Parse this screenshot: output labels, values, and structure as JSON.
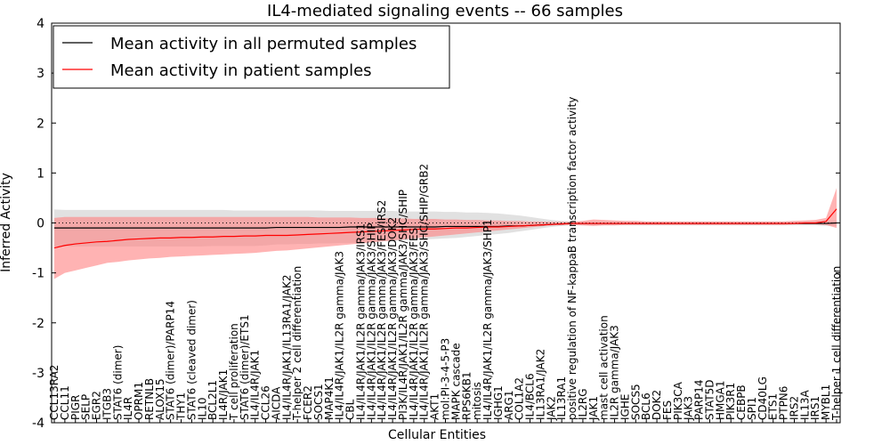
{
  "chart_data": {
    "type": "line",
    "title": "IL4-mediated signaling events -- 66 samples",
    "xlabel": "Cellular Entities",
    "ylabel": "Inferred Activity",
    "ylim": [
      -4,
      4
    ],
    "yticks": [
      -4,
      -3,
      -2,
      -1,
      0,
      1,
      2,
      3,
      4
    ],
    "legend": {
      "position": "top-left",
      "entries": [
        "Mean activity in all permuted samples",
        "Mean activity in patient samples"
      ]
    },
    "colors": {
      "permuted_line": "#000000",
      "patient_line": "#ff0000",
      "permuted_band": "#c8c8c8",
      "patient_band": "#ff8080",
      "zero_line": "#000000"
    },
    "categories": [
      "CCL13RA2",
      "CCL11",
      "PIGR",
      "SELP",
      "EGR2",
      "ITGB3",
      "STAT6 (dimer)",
      "IL4R",
      "OPRM1",
      "RETNLB",
      "ALOX15",
      "STAT6 (dimer)/PARP14",
      "THY1",
      "STAT6 (cleaved dimer)",
      "IL10",
      "BCL2L1",
      "IL4R/JAK1",
      "T cell proliferation",
      "STAT6 (dimer)/ETS1",
      "IL4/IL4R/JAK1",
      "CCL26",
      "AICDA",
      "IL4/IL4R/JAK1/IL13RA1/JAK2",
      "T-helper 2 cell differentiation",
      "FCER2",
      "SOCS1",
      "MAP4K1",
      "IL4/IL4R/JAK1/IL2R gamma/JAK3",
      "CBL",
      "IL4/IL4R/JAK1/IL2R gamma/JAK3/IRS1",
      "IL4/IL4R/JAK1/IL2R gamma/JAK3/SHIP",
      "IL4/IL4R/JAK1/IL2R gamma/JAK3/FES/IRS2",
      "IL4/IL4R/JAK1/IL2R gamma/JAK3/DOK2",
      "PI3K/IL4R/JAK1/IL2R gamma/JAK3/SHC/SHIP",
      "IL4/IL4R/JAK1/IL2R gamma/JAK3/FES",
      "IL4/IL4R/JAK1/IL2R gamma/JAK3/SHC/SHIP/GRB2",
      "AKT1",
      "mol:PI-3-4-5-P3",
      "MAPK cascade",
      "RPS6KB1",
      "mitosis",
      "IL4/IL4R/JAK1/IL2R gamma/JAK3/SHP1",
      "IGHG1",
      "ARG1",
      "COL1A2",
      "IL4/BCL6",
      "IL13RA1/JAK2",
      "JAK2",
      "IL13RA1",
      "positive regulation of NF-kappaB transcription factor activity",
      "IL2RG",
      "JAK1",
      "mast cell activation",
      "IL2R gamma/JAK3",
      "IGHE",
      "SOCS5",
      "BCL6",
      "DOK2",
      "FES",
      "PIK3CA",
      "JAK3",
      "PARP14",
      "STAT5D",
      "HMGA1",
      "PIK3R1",
      "CEBPB",
      "SPI1",
      "CD40LG",
      "ETS1",
      "PTPN6",
      "IRS2",
      "IL13A",
      "IRS1",
      "MYBL1",
      "T-helper 1 cell differentiation"
    ],
    "series": [
      {
        "name": "Mean activity in all permuted samples",
        "values": [
          -0.1,
          -0.1,
          -0.1,
          -0.1,
          -0.1,
          -0.1,
          -0.1,
          -0.1,
          -0.1,
          -0.1,
          -0.1,
          -0.1,
          -0.1,
          -0.1,
          -0.1,
          -0.1,
          -0.1,
          -0.1,
          -0.1,
          -0.1,
          -0.1,
          -0.09,
          -0.09,
          -0.09,
          -0.09,
          -0.09,
          -0.09,
          -0.09,
          -0.08,
          -0.08,
          -0.08,
          -0.08,
          -0.08,
          -0.08,
          -0.08,
          -0.08,
          -0.08,
          -0.07,
          -0.07,
          -0.07,
          -0.07,
          -0.07,
          -0.07,
          -0.06,
          -0.06,
          -0.05,
          -0.04,
          -0.03,
          -0.02,
          -0.01,
          -0.01,
          -0.01,
          -0.01,
          -0.01,
          -0.01,
          -0.01,
          -0.01,
          -0.01,
          -0.01,
          -0.01,
          -0.01,
          -0.01,
          -0.01,
          -0.01,
          -0.01,
          -0.01,
          -0.01,
          -0.01,
          -0.01,
          -0.01,
          -0.01,
          -0.01,
          -0.01,
          -0.01,
          0.0
        ],
        "upper": [
          0.27,
          0.26,
          0.26,
          0.26,
          0.26,
          0.26,
          0.26,
          0.26,
          0.26,
          0.26,
          0.26,
          0.26,
          0.26,
          0.26,
          0.26,
          0.26,
          0.26,
          0.25,
          0.25,
          0.25,
          0.25,
          0.25,
          0.25,
          0.25,
          0.25,
          0.25,
          0.24,
          0.24,
          0.24,
          0.24,
          0.24,
          0.24,
          0.24,
          0.23,
          0.23,
          0.23,
          0.23,
          0.22,
          0.22,
          0.21,
          0.21,
          0.2,
          0.19,
          0.17,
          0.15,
          0.12,
          0.09,
          0.06,
          0.04,
          0.03,
          0.03,
          0.03,
          0.03,
          0.03,
          0.03,
          0.03,
          0.03,
          0.03,
          0.03,
          0.03,
          0.03,
          0.03,
          0.03,
          0.03,
          0.03,
          0.03,
          0.03,
          0.03,
          0.03,
          0.03,
          0.03,
          0.03,
          0.03,
          0.04,
          0.05
        ],
        "lower": [
          -0.47,
          -0.47,
          -0.47,
          -0.47,
          -0.47,
          -0.47,
          -0.47,
          -0.47,
          -0.47,
          -0.47,
          -0.47,
          -0.47,
          -0.47,
          -0.47,
          -0.47,
          -0.46,
          -0.46,
          -0.46,
          -0.46,
          -0.46,
          -0.45,
          -0.43,
          -0.43,
          -0.42,
          -0.42,
          -0.41,
          -0.41,
          -0.4,
          -0.4,
          -0.39,
          -0.38,
          -0.37,
          -0.36,
          -0.35,
          -0.34,
          -0.33,
          -0.32,
          -0.31,
          -0.3,
          -0.28,
          -0.26,
          -0.24,
          -0.22,
          -0.2,
          -0.17,
          -0.14,
          -0.11,
          -0.08,
          -0.06,
          -0.05,
          -0.05,
          -0.05,
          -0.05,
          -0.05,
          -0.05,
          -0.05,
          -0.05,
          -0.05,
          -0.05,
          -0.05,
          -0.05,
          -0.05,
          -0.05,
          -0.05,
          -0.05,
          -0.05,
          -0.05,
          -0.05,
          -0.05,
          -0.05,
          -0.05,
          -0.05,
          -0.05,
          -0.06,
          -0.06
        ]
      },
      {
        "name": "Mean activity in patient samples",
        "values": [
          -0.5,
          -0.45,
          -0.42,
          -0.4,
          -0.38,
          -0.37,
          -0.35,
          -0.33,
          -0.32,
          -0.31,
          -0.3,
          -0.3,
          -0.29,
          -0.29,
          -0.28,
          -0.28,
          -0.27,
          -0.27,
          -0.26,
          -0.26,
          -0.25,
          -0.25,
          -0.25,
          -0.24,
          -0.23,
          -0.22,
          -0.21,
          -0.2,
          -0.19,
          -0.18,
          -0.17,
          -0.16,
          -0.15,
          -0.14,
          -0.13,
          -0.12,
          -0.12,
          -0.11,
          -0.1,
          -0.1,
          -0.09,
          -0.08,
          -0.08,
          -0.07,
          -0.06,
          -0.05,
          -0.04,
          -0.03,
          -0.02,
          -0.01,
          -0.01,
          -0.01,
          -0.01,
          -0.01,
          -0.01,
          -0.01,
          -0.01,
          -0.01,
          -0.01,
          -0.01,
          -0.01,
          -0.01,
          -0.01,
          -0.01,
          -0.01,
          -0.01,
          -0.01,
          -0.01,
          -0.01,
          -0.01,
          -0.01,
          0.0,
          0.0,
          0.03,
          0.28
        ],
        "upper": [
          0.1,
          0.12,
          0.12,
          0.12,
          0.12,
          0.12,
          0.12,
          0.12,
          0.12,
          0.12,
          0.12,
          0.12,
          0.12,
          0.12,
          0.12,
          0.12,
          0.12,
          0.12,
          0.12,
          0.12,
          0.12,
          0.12,
          0.12,
          0.12,
          0.12,
          0.11,
          0.11,
          0.11,
          0.11,
          0.1,
          0.1,
          0.1,
          0.09,
          0.09,
          0.08,
          0.08,
          0.08,
          0.07,
          0.07,
          0.06,
          0.06,
          0.05,
          0.05,
          0.04,
          0.04,
          0.03,
          0.03,
          0.02,
          0.02,
          0.02,
          0.04,
          0.07,
          0.06,
          0.05,
          0.04,
          0.04,
          0.03,
          0.03,
          0.03,
          0.03,
          0.03,
          0.03,
          0.03,
          0.03,
          0.03,
          0.03,
          0.03,
          0.03,
          0.03,
          0.03,
          0.04,
          0.05,
          0.06,
          0.1,
          0.7
        ],
        "lower": [
          -1.12,
          -1.0,
          -0.95,
          -0.9,
          -0.85,
          -0.8,
          -0.78,
          -0.75,
          -0.73,
          -0.71,
          -0.7,
          -0.68,
          -0.67,
          -0.66,
          -0.65,
          -0.64,
          -0.63,
          -0.62,
          -0.61,
          -0.6,
          -0.58,
          -0.56,
          -0.55,
          -0.53,
          -0.51,
          -0.49,
          -0.47,
          -0.45,
          -0.43,
          -0.41,
          -0.39,
          -0.37,
          -0.35,
          -0.33,
          -0.31,
          -0.29,
          -0.27,
          -0.25,
          -0.23,
          -0.21,
          -0.19,
          -0.17,
          -0.15,
          -0.13,
          -0.11,
          -0.09,
          -0.07,
          -0.05,
          -0.04,
          -0.04,
          -0.05,
          -0.06,
          -0.05,
          -0.05,
          -0.04,
          -0.04,
          -0.04,
          -0.04,
          -0.04,
          -0.04,
          -0.04,
          -0.04,
          -0.04,
          -0.04,
          -0.04,
          -0.04,
          -0.04,
          -0.04,
          -0.04,
          -0.04,
          -0.03,
          -0.03,
          -0.03,
          -0.04,
          -0.1
        ]
      }
    ]
  }
}
